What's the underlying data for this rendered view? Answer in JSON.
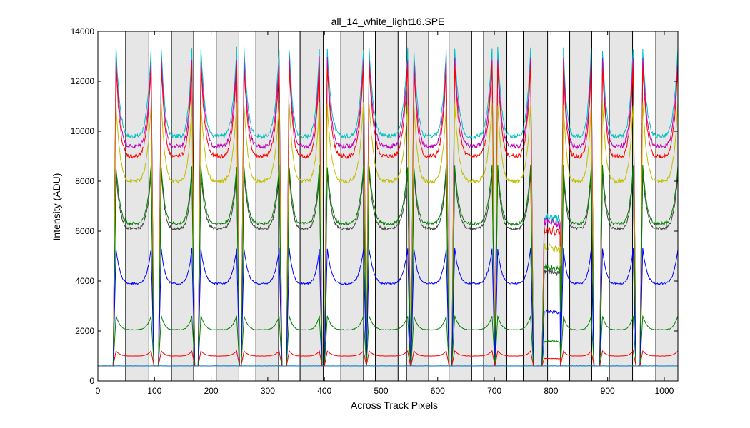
{
  "chart_data": {
    "type": "line",
    "title": "all_14_white_light16.SPE",
    "xlabel": "Across Track Pixels",
    "ylabel": "Intensity (ADU)",
    "xlim": [
      0,
      1024
    ],
    "ylim": [
      0,
      14000
    ],
    "x_ticks": [
      0,
      100,
      200,
      300,
      400,
      500,
      600,
      700,
      800,
      900,
      1000
    ],
    "y_ticks": [
      0,
      2000,
      4000,
      6000,
      8000,
      10000,
      12000,
      14000
    ],
    "grid": false,
    "legend": "none",
    "shaded_bands": [
      [
        49,
        90
      ],
      [
        130,
        169
      ],
      [
        209,
        249
      ],
      [
        279,
        319
      ],
      [
        357,
        398
      ],
      [
        429,
        469
      ],
      [
        490,
        530
      ],
      [
        545,
        584
      ],
      [
        620,
        660
      ],
      [
        681,
        722
      ],
      [
        751,
        794
      ],
      [
        833,
        872
      ],
      [
        903,
        944
      ],
      [
        985,
        1024
      ]
    ],
    "bright_segments": [
      [
        32,
        94
      ],
      [
        112,
        166
      ],
      [
        182,
        245
      ],
      [
        258,
        320
      ],
      [
        338,
        391
      ],
      [
        405,
        469
      ],
      [
        479,
        547
      ],
      [
        558,
        615
      ],
      [
        630,
        696
      ],
      [
        706,
        764
      ],
      [
        822,
        871
      ],
      [
        891,
        945
      ],
      [
        962,
        1024
      ]
    ],
    "dim_segments": [
      [
        788,
        872
      ]
    ],
    "baseline": 600,
    "series": [
      {
        "color": "#00bfbf",
        "values": {
          "edge_peak": 13300,
          "segment_min": 9800,
          "dim_level": 6600
        }
      },
      {
        "color": "#bf00bf",
        "values": {
          "edge_peak": 12900,
          "segment_min": 9400,
          "dim_level": 6400
        }
      },
      {
        "color": "#ff0000",
        "values": {
          "edge_peak": 12600,
          "segment_min": 9000,
          "dim_level": 6100
        }
      },
      {
        "color": "#bfbf00",
        "values": {
          "edge_peak": 11100,
          "segment_min": 8000,
          "dim_level": 5400
        }
      },
      {
        "color": "#404040",
        "values": {
          "edge_peak": 8300,
          "segment_min": 6100,
          "dim_level": 4400
        }
      },
      {
        "color": "#008000",
        "values": {
          "edge_peak": 8600,
          "segment_min": 6300,
          "dim_level": 4600
        }
      },
      {
        "color": "#0000ff",
        "values": {
          "edge_peak": 5300,
          "segment_min": 3900,
          "dim_level": 2800
        }
      },
      {
        "color": "#008000",
        "values": {
          "edge_peak": 2600,
          "segment_min": 2050,
          "dim_level": 1600
        }
      },
      {
        "color": "#ff0000",
        "values": {
          "edge_peak": 1200,
          "segment_min": 1000,
          "dim_level": 900
        }
      },
      {
        "color": "#0072bd",
        "values": {
          "edge_peak": 640,
          "segment_min": 600,
          "dim_level": 600
        }
      }
    ]
  }
}
